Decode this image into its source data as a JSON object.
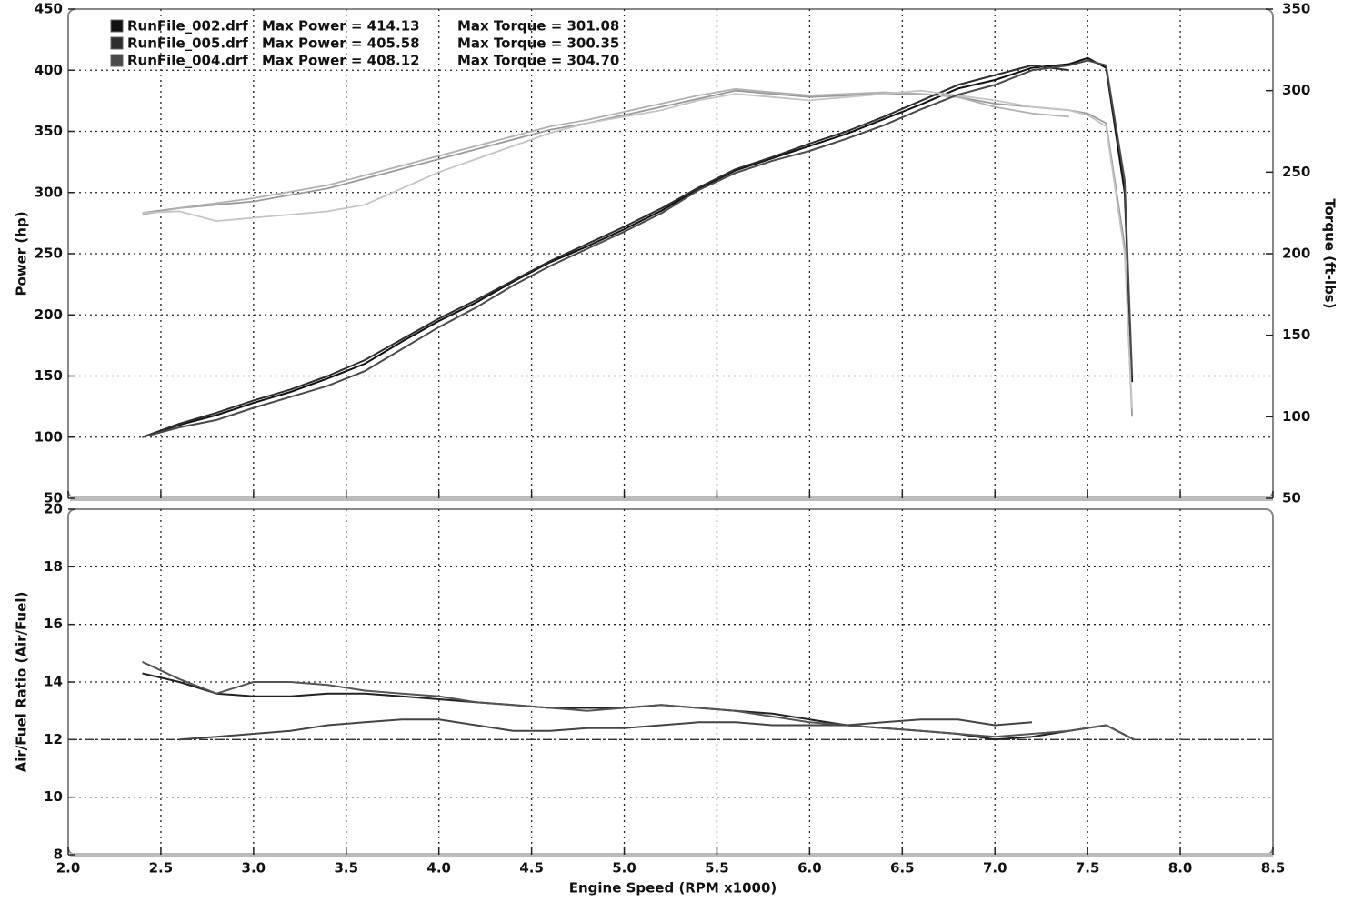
{
  "chart_data": [
    {
      "type": "line",
      "y_label": "Power (hp)",
      "y2_label": "Torque (ft-lbs)",
      "x": [
        2.4,
        2.6,
        2.8,
        3.0,
        3.2,
        3.4,
        3.6,
        3.8,
        4.0,
        4.2,
        4.4,
        4.6,
        4.8,
        5.0,
        5.2,
        5.4,
        5.6,
        5.8,
        6.0,
        6.2,
        6.4,
        6.6,
        6.8,
        7.0,
        7.2,
        7.4,
        7.5,
        7.6,
        7.7,
        7.74
      ],
      "xlim": [
        2,
        8.5
      ],
      "xticks": [
        2,
        2.5,
        3,
        3.5,
        4,
        4.5,
        5,
        5.5,
        6,
        6.5,
        7,
        7.5,
        8,
        8.5
      ],
      "show_x_tick_labels": false,
      "ylim": [
        50,
        450
      ],
      "yticks": [
        50,
        100,
        150,
        200,
        250,
        300,
        350,
        400,
        450
      ],
      "y2lim": [
        50,
        350
      ],
      "y2ticks": [
        50,
        100,
        150,
        200,
        250,
        300,
        350
      ],
      "grid": true,
      "series": [
        {
          "name": "RunFile_002.drf",
          "max_power_label": "Max Power = 414.13",
          "max_torque_label": "Max Torque = 301.08",
          "color": "#111111",
          "y2_color": "#9a9a9a",
          "values": [
            100,
            110,
            118,
            128,
            137,
            148,
            160,
            178,
            195,
            210,
            227,
            243,
            256,
            270,
            285,
            303,
            318,
            328,
            338,
            348,
            360,
            372,
            385,
            392,
            402,
            405,
            410,
            402,
            300,
            145
          ],
          "y2_values": [
            225,
            228,
            230,
            232,
            236,
            240,
            246,
            252,
            258,
            264,
            270,
            276,
            280,
            285,
            290,
            295,
            300,
            298,
            296,
            297,
            298,
            298,
            296,
            292,
            290,
            288,
            286,
            280,
            205,
            100
          ]
        },
        {
          "name": "RunFile_005.drf",
          "max_power_label": "Max Power = 405.58",
          "max_torque_label": "Max Torque = 300.35",
          "color": "#2e2e2e",
          "y2_color": "#b0b0b0",
          "values": [
            100,
            111,
            120,
            130,
            139,
            150,
            163,
            180,
            197,
            212,
            228,
            244,
            258,
            272,
            287,
            304,
            319,
            329,
            340,
            350,
            362,
            375,
            388,
            396,
            404,
            400,
            null,
            null,
            null,
            null
          ],
          "y2_values": [
            224,
            228,
            231,
            234,
            238,
            242,
            248,
            254,
            260,
            266,
            272,
            278,
            282,
            287,
            292,
            297,
            301,
            299,
            297,
            298,
            299,
            298,
            296,
            290,
            286,
            284,
            null,
            null,
            null,
            null
          ]
        },
        {
          "name": "RunFile_004.drf",
          "max_power_label": "Max Power = 408.12",
          "max_torque_label": "Max Torque = 304.70",
          "color": "#4a4a4a",
          "y2_color": "#c4c4c4",
          "values": [
            100,
            108,
            114,
            124,
            133,
            142,
            154,
            172,
            190,
            206,
            224,
            240,
            254,
            268,
            283,
            302,
            316,
            326,
            334,
            344,
            355,
            368,
            380,
            388,
            400,
            404,
            408,
            404,
            310,
            150
          ],
          "y2_values": [
            225,
            226,
            220,
            222,
            224,
            226,
            230,
            240,
            250,
            258,
            266,
            274,
            280,
            284,
            288,
            294,
            298,
            296,
            294,
            296,
            298,
            300,
            297,
            294,
            290,
            288,
            285,
            278,
            200,
            105
          ]
        }
      ]
    },
    {
      "type": "line",
      "y_label": "Air/Fuel Ratio (Air/Fuel)",
      "x_label": "Engine Speed (RPM x1000)",
      "x": [
        2.4,
        2.6,
        2.8,
        3.0,
        3.2,
        3.4,
        3.6,
        3.8,
        4.0,
        4.2,
        4.4,
        4.6,
        4.8,
        5.0,
        5.2,
        5.4,
        5.6,
        5.8,
        6.0,
        6.2,
        6.4,
        6.6,
        6.8,
        7.0,
        7.2,
        7.4,
        7.6,
        7.75
      ],
      "xlim": [
        2,
        8.5
      ],
      "xticks": [
        {
          "value": 2,
          "label": "2.0"
        },
        2.5,
        {
          "value": 3,
          "label": "3.0"
        },
        3.5,
        {
          "value": 4,
          "label": "4.0"
        },
        4.5,
        {
          "value": 5,
          "label": "5.0"
        },
        5.5,
        {
          "value": 6,
          "label": "6.0"
        },
        6.5,
        {
          "value": 7,
          "label": "7.0"
        },
        7.5,
        {
          "value": 8,
          "label": "8.0"
        },
        8.5
      ],
      "show_x_tick_labels": true,
      "ylim": [
        8,
        20
      ],
      "yticks": [
        8,
        10,
        12,
        14,
        16,
        18,
        20
      ],
      "grid": true,
      "hline": 12,
      "series": [
        {
          "color": "#222222",
          "values": [
            14.3,
            14.0,
            13.6,
            13.5,
            13.5,
            13.6,
            13.6,
            13.5,
            13.4,
            13.3,
            13.2,
            13.1,
            13.1,
            13.1,
            13.2,
            13.1,
            13.0,
            12.9,
            12.7,
            12.5,
            12.4,
            12.3,
            12.2,
            12.0,
            12.1,
            12.3,
            12.5,
            12.0
          ]
        },
        {
          "color": "#555555",
          "values": [
            14.7,
            14.1,
            13.6,
            14.0,
            14.0,
            13.9,
            13.7,
            13.6,
            13.5,
            13.3,
            13.2,
            13.1,
            13.0,
            13.1,
            13.2,
            13.1,
            13.0,
            12.8,
            12.6,
            12.5,
            12.4,
            12.3,
            12.2,
            12.1,
            12.2,
            12.3,
            12.5,
            12.0
          ]
        },
        {
          "color": "#444444",
          "values": [
            null,
            12.0,
            12.1,
            12.2,
            12.3,
            12.5,
            12.6,
            12.7,
            12.7,
            12.5,
            12.3,
            12.3,
            12.4,
            12.4,
            12.5,
            12.6,
            12.6,
            12.5,
            12.5,
            12.5,
            12.6,
            12.7,
            12.7,
            12.5,
            12.6,
            null,
            null,
            null
          ]
        }
      ]
    }
  ]
}
